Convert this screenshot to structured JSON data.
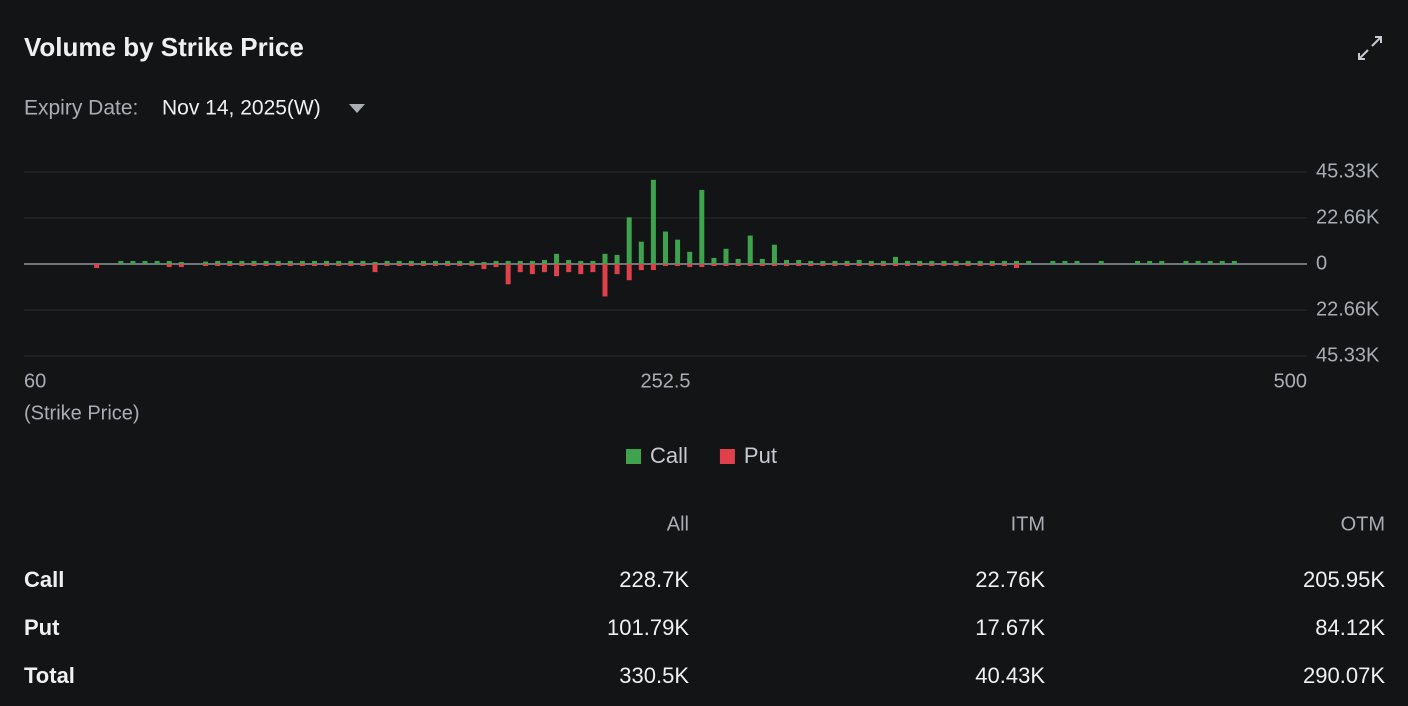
{
  "expiry": {
    "label": "Expiry Date:",
    "value": "Nov 14, 2025(W)"
  },
  "chart_data": {
    "type": "bar",
    "title": "Volume by Strike Price",
    "x_label": "(Strike Price)",
    "categories": [
      "60",
      null,
      null,
      null,
      null,
      null,
      null,
      null,
      null,
      null,
      null,
      null,
      null,
      null,
      null,
      null,
      null,
      null,
      null,
      null,
      null,
      null,
      null,
      null,
      null,
      null,
      null,
      null,
      null,
      null,
      null,
      null,
      null,
      null,
      null,
      null,
      null,
      null,
      null,
      null,
      null,
      null,
      null,
      null,
      null,
      null,
      null,
      null,
      null,
      null,
      null,
      null,
      null,
      "252.5",
      null,
      null,
      null,
      null,
      null,
      null,
      null,
      null,
      null,
      null,
      null,
      null,
      null,
      null,
      null,
      null,
      null,
      null,
      null,
      null,
      null,
      null,
      null,
      null,
      null,
      null,
      null,
      null,
      null,
      null,
      null,
      null,
      null,
      null,
      null,
      null,
      null,
      null,
      null,
      null,
      null,
      null,
      null,
      null,
      null,
      null,
      null,
      null,
      null,
      null,
      null,
      null,
      "500"
    ],
    "series": [
      {
        "name": "Call",
        "color": "#3fa34d",
        "values": [
          0,
          0,
          0,
          0,
          0,
          0,
          0,
          0,
          1500,
          1500,
          1500,
          1500,
          1500,
          1000,
          0,
          1200,
          1500,
          1500,
          1500,
          1500,
          1500,
          1500,
          1500,
          1500,
          1500,
          1500,
          1500,
          1500,
          1500,
          1000,
          1500,
          1500,
          1500,
          1500,
          1500,
          1500,
          1500,
          1500,
          1000,
          1500,
          1500,
          1500,
          1500,
          2000,
          5000,
          2000,
          1500,
          1500,
          5000,
          4500,
          23000,
          11000,
          41500,
          16000,
          12000,
          6000,
          36500,
          3000,
          7500,
          2500,
          14000,
          2500,
          9500,
          2000,
          2000,
          1500,
          1500,
          1500,
          1500,
          2000,
          1500,
          1500,
          3500,
          1500,
          1500,
          1500,
          1500,
          1500,
          1500,
          1500,
          1500,
          1500,
          1500,
          1500,
          0,
          1500,
          1500,
          1500,
          0,
          1500,
          0,
          0,
          1500,
          1500,
          1500,
          0,
          1500,
          1500,
          1500,
          1500,
          1500,
          0,
          0,
          0,
          0,
          0,
          0
        ]
      },
      {
        "name": "Put",
        "color": "#e0404a",
        "values": [
          0,
          0,
          0,
          0,
          0,
          0,
          2000,
          0,
          0,
          0,
          0,
          0,
          1500,
          1500,
          0,
          1000,
          1000,
          1000,
          1000,
          1000,
          1000,
          1000,
          1000,
          1000,
          1000,
          1000,
          1000,
          1000,
          1000,
          4000,
          1000,
          1000,
          1000,
          1000,
          1000,
          1000,
          1000,
          1000,
          2500,
          1500,
          10000,
          4000,
          5000,
          4000,
          6000,
          4000,
          5000,
          4000,
          16000,
          5000,
          8000,
          3000,
          3000,
          1000,
          1000,
          1500,
          1500,
          1000,
          1000,
          1000,
          1000,
          1000,
          1000,
          1000,
          1000,
          1000,
          1000,
          1000,
          1000,
          1000,
          1000,
          1000,
          1000,
          1000,
          1000,
          1000,
          1000,
          1000,
          1000,
          1000,
          1000,
          1000,
          2000,
          0,
          0,
          0,
          0,
          0,
          0,
          0,
          0,
          0,
          0,
          0,
          0,
          0,
          0,
          0,
          0,
          0,
          0,
          0,
          0,
          0,
          0,
          0,
          0
        ]
      }
    ],
    "ylim": [
      -45330,
      45330
    ],
    "yticks": [
      {
        "value": 45330,
        "label": "45.33K"
      },
      {
        "value": 22660,
        "label": "22.66K"
      },
      0,
      {
        "value": -22660,
        "label": "22.66K"
      },
      {
        "value": -45330,
        "label": "45.33K"
      }
    ],
    "grid": true,
    "legend": "bottom"
  },
  "table": {
    "columns": [
      "All",
      "ITM",
      "OTM"
    ],
    "rows": [
      {
        "label": "Call",
        "values": [
          "228.7K",
          "22.76K",
          "205.95K"
        ]
      },
      {
        "label": "Put",
        "values": [
          "101.79K",
          "17.67K",
          "84.12K"
        ]
      },
      {
        "label": "Total",
        "values": [
          "330.5K",
          "40.43K",
          "290.07K"
        ]
      }
    ]
  }
}
